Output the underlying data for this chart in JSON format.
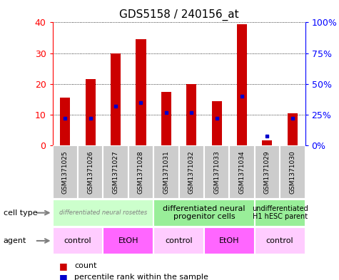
{
  "title": "GDS5158 / 240156_at",
  "samples": [
    "GSM1371025",
    "GSM1371026",
    "GSM1371027",
    "GSM1371028",
    "GSM1371031",
    "GSM1371032",
    "GSM1371033",
    "GSM1371034",
    "GSM1371029",
    "GSM1371030"
  ],
  "counts": [
    15.5,
    21.5,
    30.0,
    34.5,
    17.5,
    20.0,
    14.5,
    39.5,
    1.8,
    10.5
  ],
  "percentile_ranks": [
    22,
    22,
    32,
    35,
    27,
    27,
    22,
    40,
    8,
    22
  ],
  "ylim_left": [
    0,
    40
  ],
  "ylim_right": [
    0,
    100
  ],
  "yticks_left": [
    0,
    10,
    20,
    30,
    40
  ],
  "yticks_right": [
    0,
    25,
    50,
    75,
    100
  ],
  "yticklabels_right": [
    "0%",
    "25%",
    "50%",
    "75%",
    "100%"
  ],
  "cell_type_groups": [
    {
      "label": "differentiated neural rosettes",
      "start": 0,
      "end": 4,
      "color": "#ccffcc",
      "fontsize": 6,
      "fontstyle": "italic"
    },
    {
      "label": "differentiated neural\nprogenitor cells",
      "start": 4,
      "end": 8,
      "color": "#99ee99",
      "fontsize": 8,
      "fontstyle": "normal"
    },
    {
      "label": "undifferentiated\nH1 hESC parent",
      "start": 8,
      "end": 10,
      "color": "#99ee99",
      "fontsize": 7,
      "fontstyle": "normal"
    }
  ],
  "agent_groups": [
    {
      "label": "control",
      "start": 0,
      "end": 2,
      "color": "#ffccff"
    },
    {
      "label": "EtOH",
      "start": 2,
      "end": 4,
      "color": "#ff66ff"
    },
    {
      "label": "control",
      "start": 4,
      "end": 6,
      "color": "#ffccff"
    },
    {
      "label": "EtOH",
      "start": 6,
      "end": 8,
      "color": "#ff66ff"
    },
    {
      "label": "control",
      "start": 8,
      "end": 10,
      "color": "#ffccff"
    }
  ],
  "bar_color": "#cc0000",
  "marker_color": "#0000cc",
  "sample_box_color": "#cccccc",
  "legend_count_color": "#cc0000",
  "legend_marker_color": "#0000cc"
}
